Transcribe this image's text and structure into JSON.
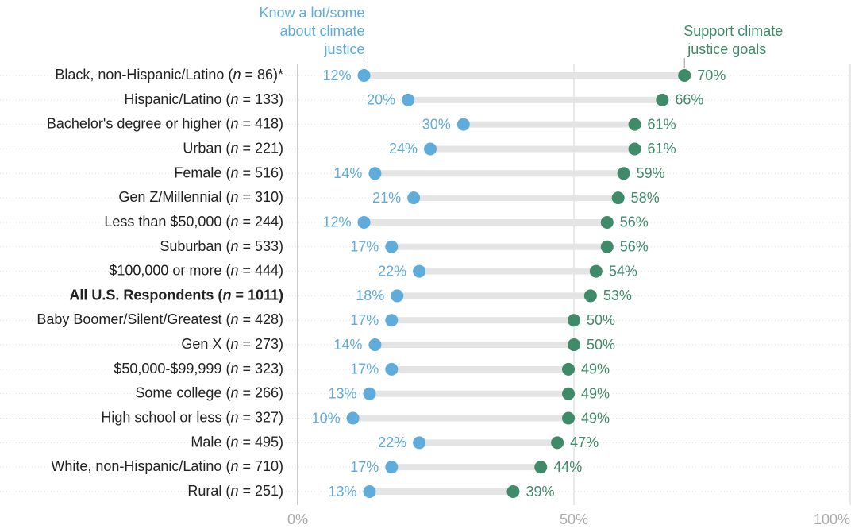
{
  "chart_data": {
    "type": "dumbbell",
    "categories": [
      "Black, non-Hispanic/Latino (n = 86)*",
      "Hispanic/Latino (n = 133)",
      "Bachelor's degree or higher (n = 418)",
      "Urban (n = 221)",
      "Female (n = 516)",
      "Gen Z/Millennial (n = 310)",
      "Less than $50,000 (n = 244)",
      "Suburban (n = 533)",
      "$100,000 or more (n = 444)",
      "All U.S. Respondents (n = 1011)",
      "Baby Boomer/Silent/Greatest (n = 428)",
      "Gen X (n = 273)",
      "$50,000-$99,999 (n = 323)",
      "Some college (n = 266)",
      "High school or less (n = 327)",
      "Male (n = 495)",
      "White, non-Hispanic/Latino (n = 710)",
      "Rural (n = 251)"
    ],
    "highlight_index": 9,
    "series": [
      {
        "name": "Know a lot/some about climate justice",
        "color": "#5fabd9",
        "values": [
          12,
          20,
          30,
          24,
          14,
          21,
          12,
          17,
          22,
          18,
          17,
          14,
          17,
          13,
          10,
          22,
          17,
          13
        ],
        "value_labels": [
          "12%",
          "20%",
          "30%",
          "24%",
          "14%",
          "21%",
          "12%",
          "17%",
          "22%",
          "18%",
          "17%",
          "14%",
          "17%",
          "13%",
          "10%",
          "22%",
          "17%",
          "13%"
        ]
      },
      {
        "name": "Support climate justice goals",
        "color": "#3f8a68",
        "values": [
          70,
          66,
          61,
          61,
          59,
          58,
          56,
          56,
          54,
          53,
          50,
          50,
          49,
          49,
          49,
          47,
          44,
          39
        ],
        "value_labels": [
          "70%",
          "66%",
          "61%",
          "61%",
          "59%",
          "58%",
          "56%",
          "56%",
          "54%",
          "53%",
          "50%",
          "50%",
          "49%",
          "49%",
          "49%",
          "47%",
          "44%",
          "39%"
        ]
      }
    ],
    "xlim": [
      0,
      100
    ],
    "xticks": [
      {
        "value": 0,
        "label": "0%"
      },
      {
        "value": 50,
        "label": "50%"
      },
      {
        "value": 100,
        "label": "100%"
      }
    ]
  }
}
